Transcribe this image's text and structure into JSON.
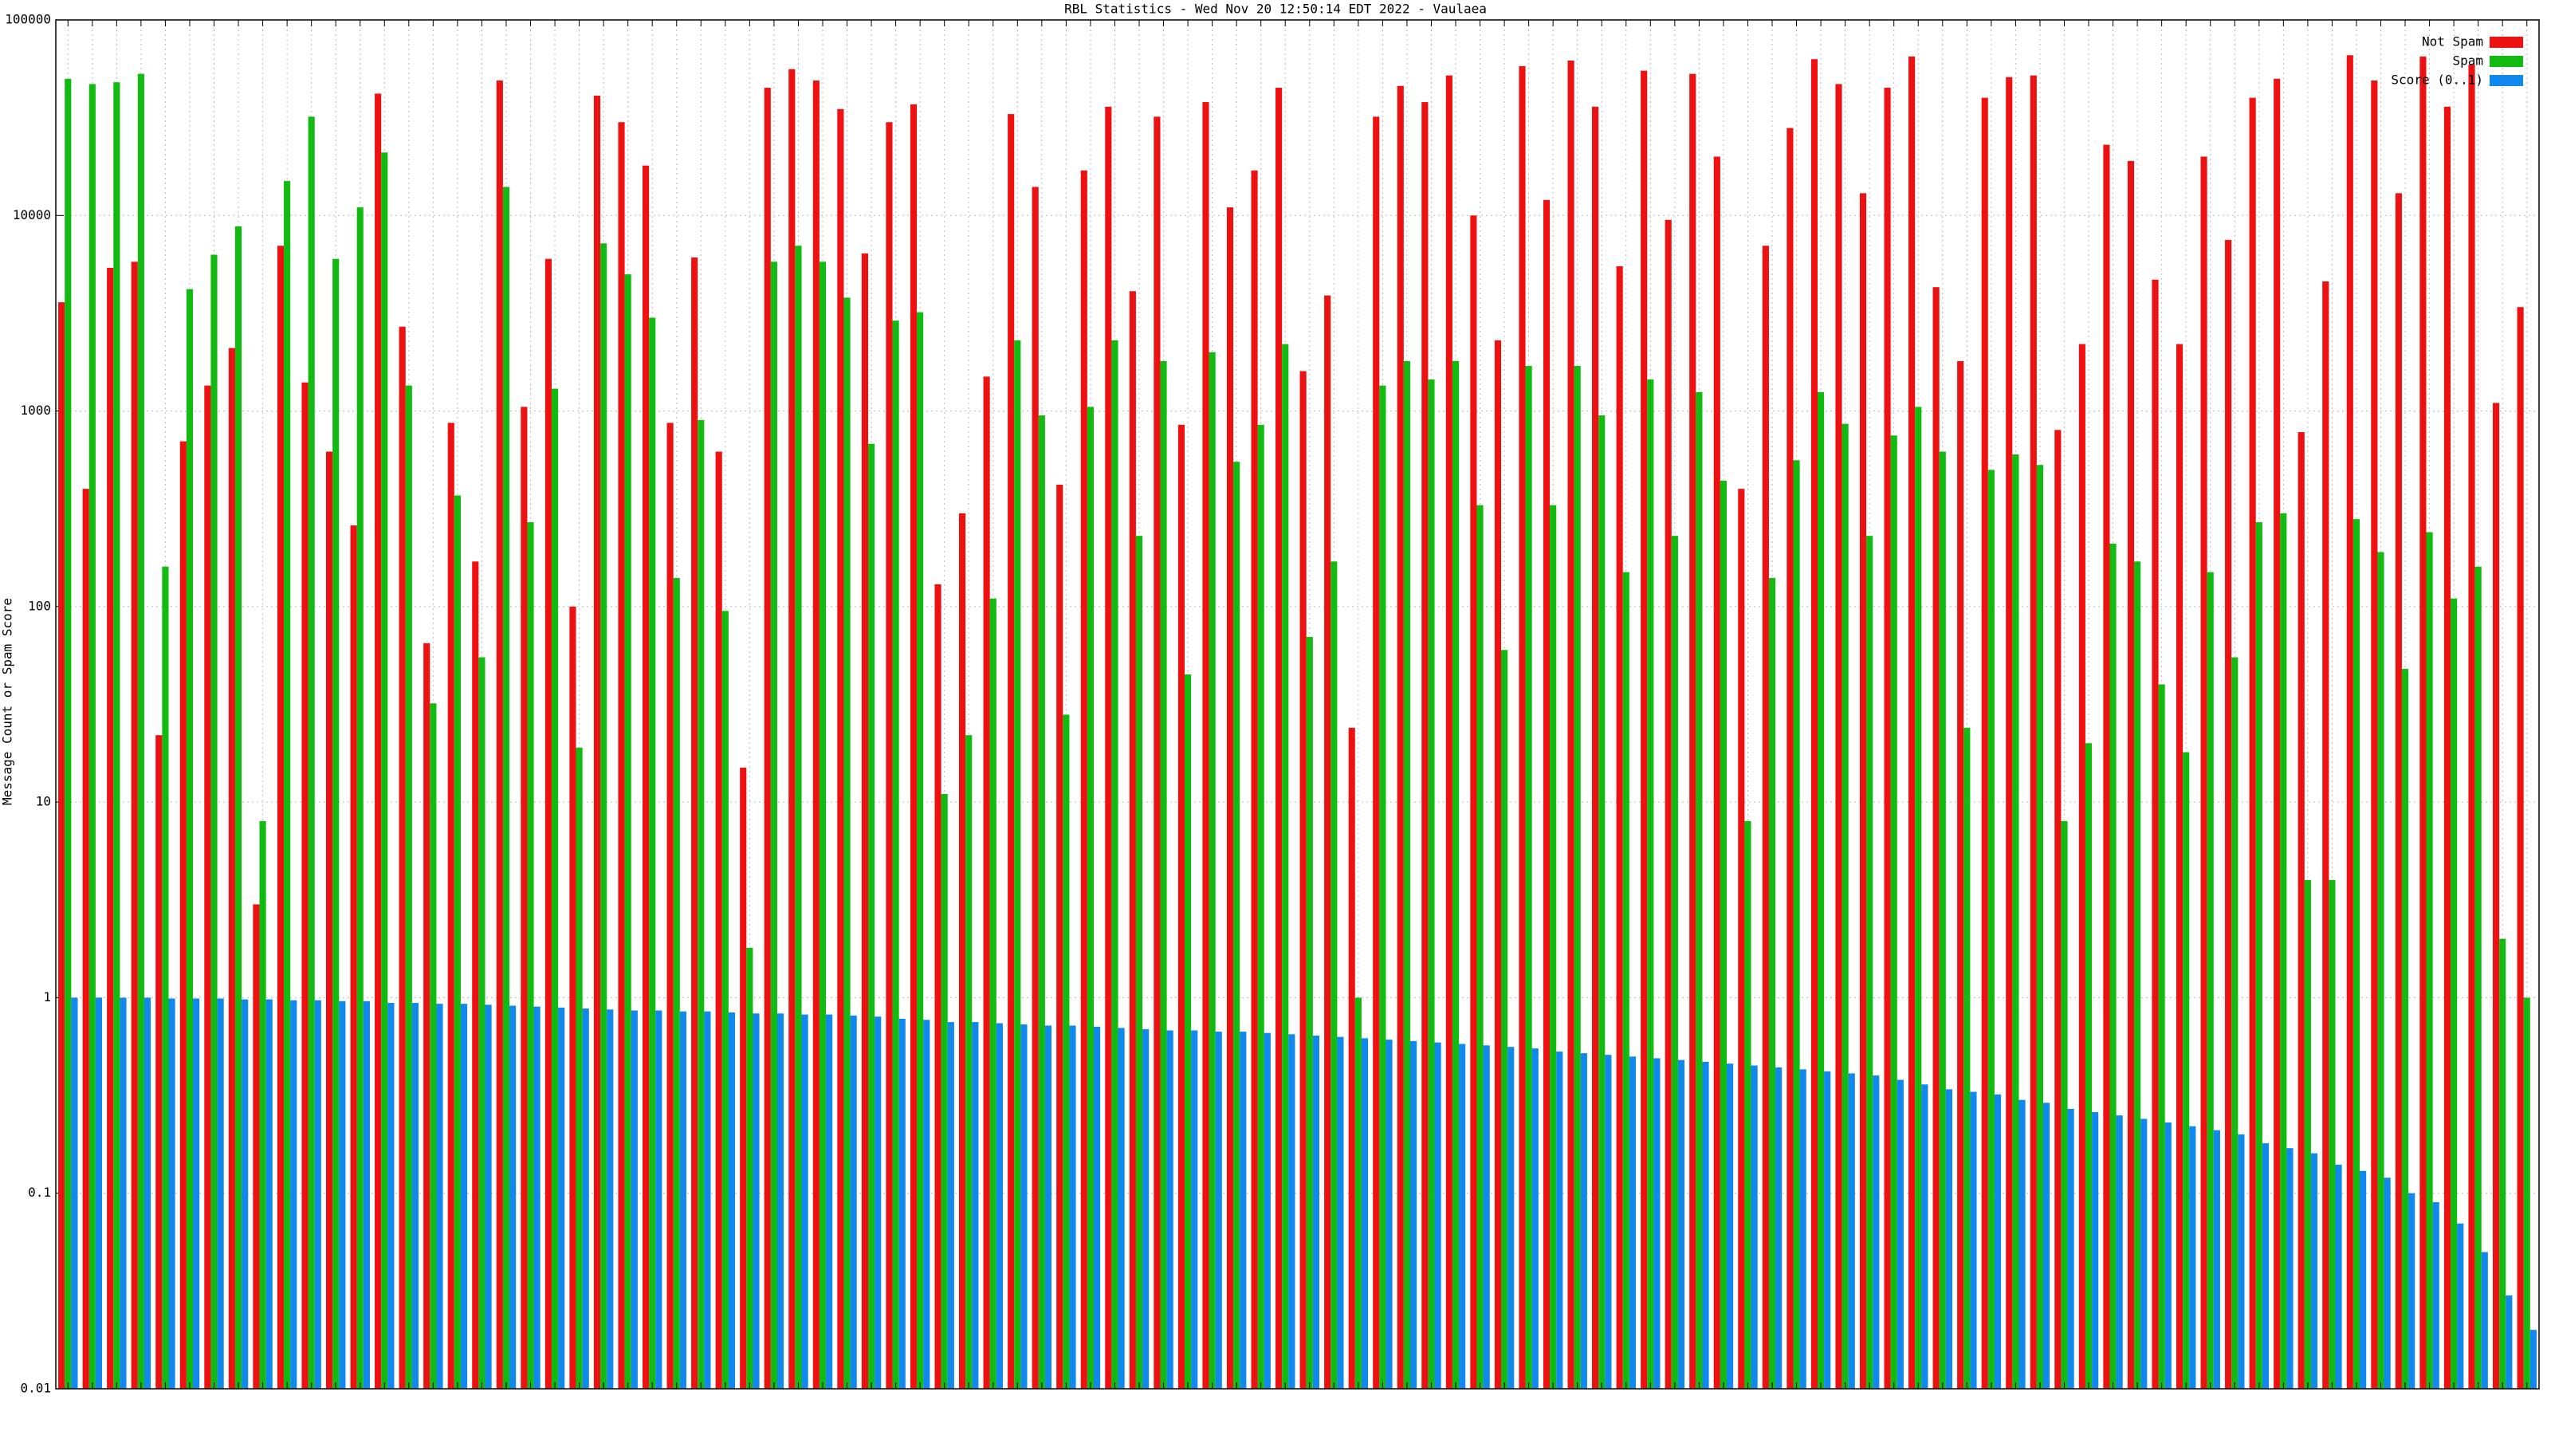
{
  "chart_data": {
    "type": "bar",
    "title": "RBL Statistics - Wed Nov 20 12:50:14 EDT 2022 - Vaulaea",
    "y_label": "Message Count or Spam Score",
    "log_scale": true,
    "grid": true,
    "legend_position": "upper right",
    "ylim": [
      0.01,
      100000
    ],
    "yticks": [
      0.01,
      0.1,
      1,
      10,
      100,
      1000,
      10000,
      100000
    ],
    "categories": [
      null,
      null,
      null,
      null,
      null,
      null,
      null,
      null,
      null,
      null,
      null,
      null,
      null,
      null,
      null,
      null,
      null,
      null,
      null,
      null,
      null,
      null,
      null,
      null,
      null,
      null,
      null,
      null,
      null,
      null,
      null,
      null,
      null,
      null,
      null,
      null,
      null,
      null,
      null,
      null,
      null,
      null,
      null,
      null,
      null,
      null,
      null,
      null,
      null,
      null,
      null,
      null,
      null,
      null,
      null,
      null,
      null,
      null,
      null,
      null,
      null,
      null,
      null,
      null,
      null,
      null,
      null,
      null,
      null,
      null,
      null,
      null,
      null,
      null,
      null,
      null,
      null,
      null,
      null,
      null,
      null,
      null,
      null,
      null,
      null,
      null,
      null,
      null,
      null,
      null,
      null,
      null,
      null,
      null,
      null,
      null,
      null,
      null,
      null,
      null,
      null,
      null
    ],
    "series": [
      {
        "name": "Not Spam",
        "color": "#ee1111",
        "values": [
          3600,
          400,
          5400,
          5800,
          22,
          700,
          1350,
          2100,
          3,
          7000,
          1400,
          620,
          260,
          42000,
          2700,
          65,
          870,
          170,
          49000,
          1050,
          6000,
          100,
          41000,
          30000,
          18000,
          870,
          6100,
          620,
          15,
          45000,
          56000,
          49000,
          35000,
          6400,
          30000,
          37000,
          130,
          300,
          1500,
          33000,
          14000,
          420,
          17000,
          36000,
          4100,
          32000,
          850,
          38000,
          11000,
          17000,
          45000,
          1600,
          3900,
          24,
          32000,
          46000,
          38000,
          52000,
          10000,
          2300,
          58000,
          12000,
          62000,
          36000,
          5500,
          55000,
          9500,
          53000,
          20000,
          400,
          7000,
          28000,
          63000,
          47000,
          13000,
          45000,
          65000,
          4300,
          1800,
          40000,
          51000,
          52000,
          800,
          2200,
          23000,
          19000,
          4700,
          2200,
          20000,
          7500,
          40000,
          50000,
          780,
          4600,
          66000,
          49000,
          13000,
          65000,
          36000,
          59000,
          1100,
          3400
        ]
      },
      {
        "name": "Spam",
        "color": "#11bb11",
        "values": [
          50000,
          47000,
          48000,
          53000,
          160,
          4200,
          6300,
          8800,
          8,
          15000,
          32000,
          6000,
          11000,
          21000,
          1350,
          32,
          370,
          55,
          14000,
          270,
          1300,
          19,
          7200,
          5000,
          3000,
          140,
          900,
          95,
          1.8,
          5800,
          7000,
          5800,
          3800,
          680,
          2900,
          3200,
          11,
          22,
          110,
          2300,
          950,
          28,
          1050,
          2300,
          230,
          1800,
          45,
          2000,
          550,
          850,
          2200,
          70,
          170,
          1,
          1350,
          1800,
          1450,
          1800,
          330,
          60,
          1700,
          330,
          1700,
          950,
          150,
          1450,
          230,
          1250,
          440,
          8,
          140,
          560,
          1250,
          860,
          230,
          750,
          1050,
          620,
          24,
          500,
          600,
          530,
          8,
          20,
          210,
          170,
          40,
          18,
          150,
          55,
          270,
          300,
          4,
          4,
          280,
          190,
          48,
          240,
          110,
          160,
          2,
          1
        ]
      },
      {
        "name": "Score (0..1)",
        "color": "#1188ee",
        "values": [
          1,
          1,
          1,
          1,
          0.99,
          0.99,
          0.99,
          0.98,
          0.98,
          0.97,
          0.97,
          0.96,
          0.96,
          0.94,
          0.94,
          0.93,
          0.93,
          0.92,
          0.91,
          0.9,
          0.89,
          0.88,
          0.87,
          0.86,
          0.86,
          0.85,
          0.85,
          0.84,
          0.83,
          0.83,
          0.82,
          0.82,
          0.81,
          0.8,
          0.78,
          0.77,
          0.75,
          0.75,
          0.74,
          0.73,
          0.72,
          0.72,
          0.71,
          0.7,
          0.69,
          0.68,
          0.68,
          0.67,
          0.67,
          0.66,
          0.65,
          0.64,
          0.63,
          0.62,
          0.61,
          0.6,
          0.59,
          0.58,
          0.57,
          0.56,
          0.55,
          0.53,
          0.52,
          0.51,
          0.5,
          0.49,
          0.48,
          0.47,
          0.46,
          0.45,
          0.44,
          0.43,
          0.42,
          0.41,
          0.4,
          0.38,
          0.36,
          0.34,
          0.33,
          0.32,
          0.3,
          0.29,
          0.27,
          0.26,
          0.25,
          0.24,
          0.23,
          0.22,
          0.21,
          0.2,
          0.18,
          0.17,
          0.16,
          0.14,
          0.13,
          0.12,
          0.1,
          0.09,
          0.07,
          0.05,
          0.03,
          0.02
        ]
      }
    ]
  }
}
